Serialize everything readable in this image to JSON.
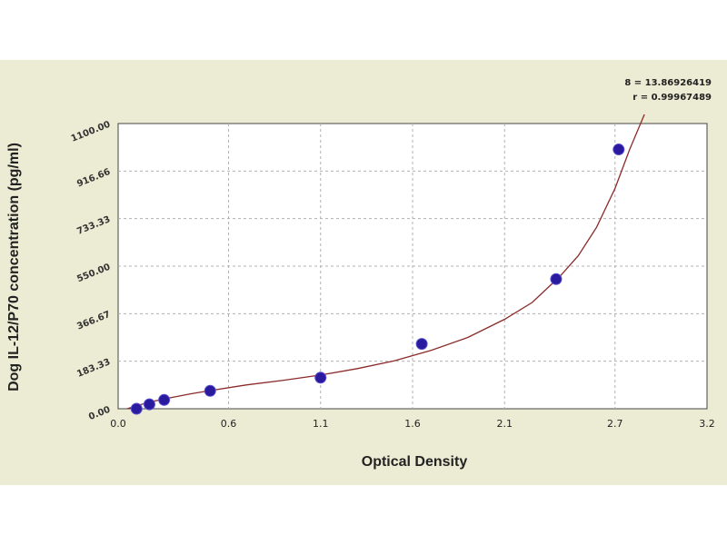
{
  "chart_data": {
    "type": "scatter",
    "xlabel": "Optical Density",
    "ylabel": "Dog IL-12/P70 concentration (pg/ml)",
    "xlim": [
      0.0,
      3.2
    ],
    "ylim": [
      0,
      1100
    ],
    "x_ticks": [
      "0.0",
      "0.6",
      "1.1",
      "1.6",
      "2.1",
      "2.7",
      "3.2"
    ],
    "x_tick_values": [
      0.0,
      0.6,
      1.1,
      1.6,
      2.1,
      2.7,
      3.2
    ],
    "y_ticks": [
      "0.00",
      "183.33",
      "366.67",
      "550.00",
      "733.33",
      "916.66",
      "1100.00"
    ],
    "y_tick_values": [
      0,
      183.33,
      366.67,
      550.0,
      733.33,
      916.66,
      1100.0
    ],
    "grid": true,
    "points": [
      {
        "x": 0.1,
        "y": 0
      },
      {
        "x": 0.17,
        "y": 17
      },
      {
        "x": 0.25,
        "y": 34
      },
      {
        "x": 0.5,
        "y": 69
      },
      {
        "x": 1.1,
        "y": 120
      },
      {
        "x": 1.65,
        "y": 250
      },
      {
        "x": 2.38,
        "y": 500
      },
      {
        "x": 2.72,
        "y": 1000
      }
    ],
    "curve": [
      [
        0.05,
        0
      ],
      [
        0.1,
        12
      ],
      [
        0.2,
        30
      ],
      [
        0.3,
        45
      ],
      [
        0.4,
        58
      ],
      [
        0.5,
        70
      ],
      [
        0.7,
        92
      ],
      [
        0.9,
        110
      ],
      [
        1.1,
        130
      ],
      [
        1.3,
        155
      ],
      [
        1.5,
        185
      ],
      [
        1.7,
        225
      ],
      [
        1.9,
        275
      ],
      [
        2.1,
        345
      ],
      [
        2.25,
        410
      ],
      [
        2.4,
        510
      ],
      [
        2.5,
        590
      ],
      [
        2.6,
        700
      ],
      [
        2.7,
        850
      ],
      [
        2.78,
        1000
      ],
      [
        2.86,
        1150
      ]
    ],
    "annotations": {
      "s_label": "8 = 13.86926419",
      "r_label": "r = 0.99967489"
    },
    "colors": {
      "background": "#ecebd3",
      "plot_area": "#ffffff",
      "grid": "#b0b0b0",
      "curve": "#8b2a2a",
      "marker": "#2a1a9e"
    }
  }
}
